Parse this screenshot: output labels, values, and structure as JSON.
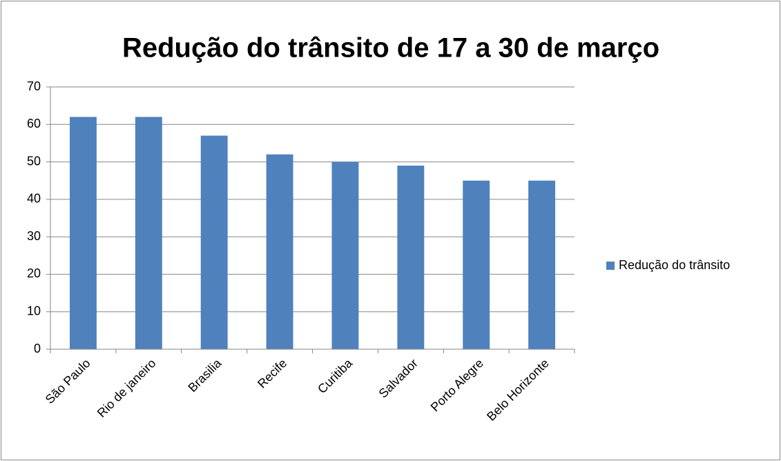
{
  "chart_data": {
    "type": "bar",
    "title": "Redução do trânsito de 17 a 30 de março",
    "categories": [
      "São Paulo",
      "Rio de janeiro",
      "Brasilia",
      "Recife",
      "Curitiba",
      "Salvador",
      "Porto Alegre",
      "Belo Horizonte"
    ],
    "series": [
      {
        "name": "Redução do trânsito",
        "color": "#4f81bd",
        "values": [
          62,
          62,
          57,
          52,
          50,
          49,
          45,
          45
        ]
      }
    ],
    "ylim": [
      0,
      70
    ],
    "yticks": [
      0,
      10,
      20,
      30,
      40,
      50,
      60,
      70
    ],
    "grid": true,
    "legend": "right"
  }
}
